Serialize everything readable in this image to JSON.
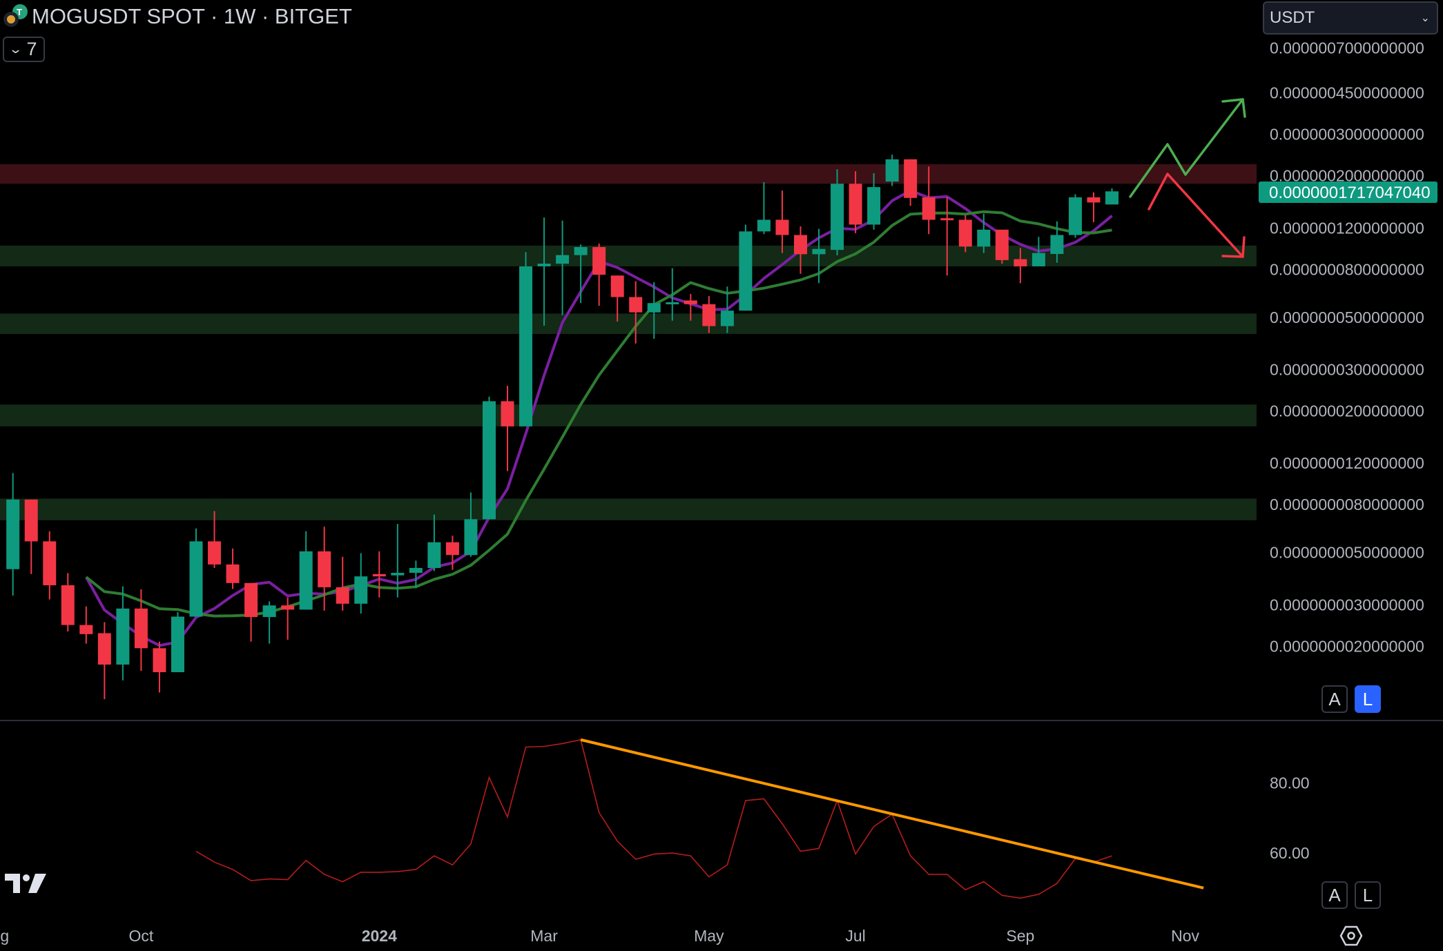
{
  "header": {
    "title": "MOGUSDT SPOT · 1W · BITGET",
    "indicator_count": "7"
  },
  "currency_select": {
    "value": "USDT"
  },
  "price_axis": {
    "labels": [
      "0.0000007000000000",
      "0.0000004500000000",
      "0.0000003000000000",
      "0.0000002000000000",
      "0.0000001200000000",
      "0.0000000800000000",
      "0.0000000500000000",
      "0.0000000300000000",
      "0.0000000200000000",
      "0.0000000120000000",
      "0.0000000080000000",
      "0.0000000050000000",
      "0.0000000030000000",
      "0.0000000020000000"
    ],
    "last_price_label": "0.0000001717047040",
    "scale_buttons": {
      "auto": "A",
      "log": "L"
    }
  },
  "rsi_axis": {
    "labels": [
      "80.00",
      "60.00"
    ],
    "scale_buttons": {
      "auto": "A",
      "log": "L"
    }
  },
  "time_axis": [
    {
      "label": "g",
      "bar": -0.45
    },
    {
      "label": "Oct",
      "bar": 7
    },
    {
      "label": "2024",
      "bar": 20,
      "bold": true
    },
    {
      "label": "Mar",
      "bar": 29
    },
    {
      "label": "May",
      "bar": 38
    },
    {
      "label": "Jul",
      "bar": 46
    },
    {
      "label": "Sep",
      "bar": 55
    },
    {
      "label": "Nov",
      "bar": 64
    }
  ],
  "colors": {
    "up": "#0e9a7f",
    "down": "#f23645",
    "ma_fast": "#7b1fa2",
    "ma_slow": "#2e7d32",
    "rsi": "#b71c1c",
    "trendline": "#ff9800",
    "zone_green": "#132a16",
    "zone_red": "#3d1016",
    "accent": "#2962ff"
  },
  "chart_data": {
    "type": "candlestick",
    "title": "MOGUSDT SPOT · 1W · BITGET",
    "price_unit": "1e-9 USDT",
    "yscale": "log",
    "ylim": [
      1.05,
      820
    ],
    "candles_ohlc": [
      [
        4.25,
        10.9,
        3.28,
        8.4
      ],
      [
        8.4,
        8.4,
        4.05,
        5.58
      ],
      [
        5.58,
        6.16,
        3.16,
        3.63
      ],
      [
        3.63,
        4.09,
        2.31,
        2.46
      ],
      [
        2.46,
        2.95,
        2.05,
        2.25
      ],
      [
        2.27,
        2.53,
        1.19,
        1.67
      ],
      [
        1.67,
        3.59,
        1.43,
        2.89
      ],
      [
        2.89,
        3.49,
        1.57,
        1.96
      ],
      [
        1.96,
        2.09,
        1.27,
        1.55
      ],
      [
        1.55,
        2.79,
        1.55,
        2.67
      ],
      [
        2.67,
        6.33,
        2.67,
        5.58
      ],
      [
        5.58,
        7.5,
        4.3,
        4.45
      ],
      [
        4.45,
        5.2,
        3.5,
        3.71
      ],
      [
        3.71,
        3.71,
        2.09,
        2.66
      ],
      [
        2.66,
        3.1,
        2.05,
        2.98
      ],
      [
        2.98,
        3.22,
        2.13,
        2.86
      ],
      [
        2.86,
        6.16,
        2.86,
        5.06
      ],
      [
        5.06,
        6.44,
        2.83,
        3.56
      ],
      [
        3.56,
        4.8,
        2.83,
        3.03
      ],
      [
        3.03,
        4.97,
        2.75,
        3.96
      ],
      [
        4.05,
        5.06,
        3.22,
        3.96
      ],
      [
        4.0,
        6.62,
        3.22,
        4.1
      ],
      [
        4.1,
        4.62,
        3.53,
        4.3
      ],
      [
        4.3,
        7.25,
        4.17,
        5.53
      ],
      [
        5.53,
        5.9,
        4.22,
        4.88
      ],
      [
        4.88,
        9.0,
        4.8,
        6.93
      ],
      [
        6.93,
        23.0,
        6.93,
        22.0
      ],
      [
        22.0,
        25.6,
        11.1,
        17.2
      ],
      [
        17.2,
        94.7,
        17.2,
        82.4
      ],
      [
        82.4,
        133,
        46.1,
        84.6
      ],
      [
        84.6,
        129,
        51.1,
        92
      ],
      [
        92,
        102,
        57.5,
        99.5
      ],
      [
        99.5,
        103,
        56,
        75.9
      ],
      [
        75.3,
        75.3,
        48,
        61
      ],
      [
        61,
        71.2,
        38.7,
        52.5
      ],
      [
        52.5,
        70.6,
        40.5,
        57.5
      ],
      [
        57.5,
        80.9,
        48.4,
        58
      ],
      [
        59,
        62.9,
        48.4,
        56.9
      ],
      [
        56.9,
        61.6,
        42.9,
        45.9
      ],
      [
        45.9,
        67.6,
        42.9,
        53.4
      ],
      [
        53.4,
        124,
        53.4,
        116
      ],
      [
        116,
        188,
        113,
        130
      ],
      [
        130,
        173,
        93.9,
        112
      ],
      [
        112,
        122,
        76.6,
        92.8
      ],
      [
        92.8,
        119,
        69.9,
        97.7
      ],
      [
        96.8,
        213,
        91.8,
        185
      ],
      [
        185,
        209,
        114,
        124
      ],
      [
        124,
        205,
        118,
        179
      ],
      [
        189,
        246,
        181,
        235
      ],
      [
        235,
        235,
        149,
        161
      ],
      [
        162,
        219,
        113,
        130
      ],
      [
        132,
        162,
        75.3,
        131
      ],
      [
        130,
        136,
        94.7,
        100
      ],
      [
        100,
        138,
        93.9,
        118
      ],
      [
        118,
        118,
        84.6,
        87.6
      ],
      [
        88.4,
        98.6,
        69.9,
        82.4
      ],
      [
        82.4,
        110,
        83.9,
        93.9
      ],
      [
        93,
        128,
        85.4,
        112
      ],
      [
        112,
        167,
        109,
        162
      ],
      [
        162,
        170,
        127,
        154
      ],
      [
        151,
        177,
        151,
        171.7
      ]
    ],
    "moving_averages": [
      {
        "name": "MA fast",
        "period": 5
      },
      {
        "name": "MA slow",
        "period": 10
      }
    ],
    "zones": [
      {
        "type": "resistance",
        "from": 185,
        "to": 224
      },
      {
        "type": "support",
        "from": 82.4,
        "to": 101
      },
      {
        "type": "support",
        "from": 42.5,
        "to": 51.9
      },
      {
        "type": "support",
        "from": 17.2,
        "to": 21.3
      },
      {
        "type": "support",
        "from": 6.86,
        "to": 8.48
      }
    ],
    "rsi": {
      "start_bar": 10,
      "ylim": [
        44,
        97
      ],
      "values": [
        60.5,
        57.4,
        55.3,
        52.1,
        52.6,
        52.4,
        57.9,
        53.9,
        51.8,
        54.5,
        54.5,
        54.7,
        55.3,
        59.2,
        56.6,
        62.6,
        81.6,
        70.3,
        90.3,
        90.5,
        91.3,
        92.4,
        71.6,
        63.4,
        58.2,
        59.7,
        60,
        59.2,
        53.2,
        56.6,
        75,
        75.5,
        68.4,
        60.5,
        61.3,
        75,
        59.7,
        67.6,
        71.1,
        59.2,
        53.9,
        53.9,
        49.5,
        51.8,
        47.9,
        47.1,
        48.2,
        51.3,
        58.4,
        57.4,
        59.2
      ],
      "trendline": [
        {
          "bar": 31,
          "value": 92.4
        },
        {
          "bar": 65,
          "value": 50
        }
      ]
    }
  }
}
